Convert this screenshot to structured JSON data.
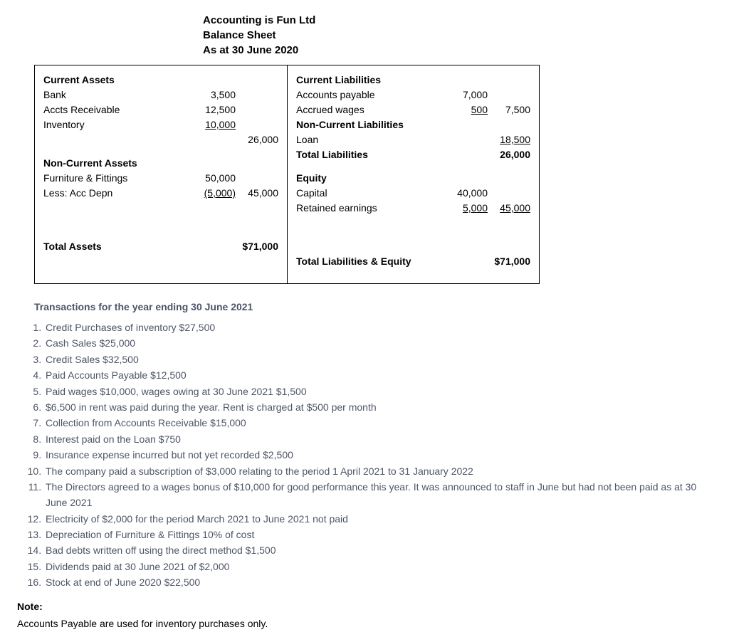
{
  "header": {
    "company": "Accounting is Fun Ltd",
    "report": "Balance Sheet",
    "asAt": "As at 30 June 2020"
  },
  "bs": {
    "left": {
      "caHead": "Current Assets",
      "bankLbl": "Bank",
      "bankVal": "3,500",
      "arLbl": "Accts Receivable",
      "arVal": "12,500",
      "invLbl": "Inventory",
      "invVal": "10,000",
      "caTotal": "26,000",
      "ncaHead": "Non-Current Assets",
      "ffLbl": "Furniture & Fittings",
      "ffVal": "50,000",
      "depLbl": "Less: Acc Depn",
      "depVal": "(5,000)",
      "ncaTotal": "45,000",
      "taLbl": "Total Assets",
      "taVal": "$71,000"
    },
    "right": {
      "clHead": "Current Liabilities",
      "apLbl": "Accounts payable",
      "apVal": "7,000",
      "awLbl": "Accrued wages",
      "awVal": "500",
      "clTotal": "7,500",
      "nclHead": "Non-Current Liabilities",
      "loanLbl": "Loan",
      "loanVal": "18,500",
      "tlLbl": "Total Liabilities",
      "tlVal": "26,000",
      "eqHead": "Equity",
      "capLbl": "Capital",
      "capVal": "40,000",
      "reLbl": "Retained earnings",
      "reVal": "5,000",
      "eqTotal": "45,000",
      "tleLbl": "Total Liabilities & Equity",
      "tleVal": "$71,000"
    }
  },
  "transHead": "Transactions for the year ending 30 June 2021",
  "trans": [
    "Credit Purchases of inventory $27,500",
    "Cash Sales $25,000",
    "Credit Sales $32,500",
    "Paid Accounts Payable $12,500",
    "Paid wages $10,000, wages owing at 30 June 2021 $1,500",
    "$6,500 in rent was paid during the year. Rent is charged at $500 per month",
    "Collection from Accounts Receivable $15,000",
    "Interest paid on the Loan $750",
    "Insurance expense incurred but not yet recorded $2,500",
    "The company paid a subscription of $3,000 relating to the period 1 April 2021 to 31 January 2022",
    "The Directors agreed to a wages bonus of $10,000 for good performance this year. It was announced to staff in June but had not been paid as at 30 June 2021",
    "Electricity of $2,000 for the period March 2021 to June 2021 not paid",
    "Depreciation of Furniture & Fittings 10% of cost",
    "Bad debts written off using the direct method $1,500",
    "Dividends paid at 30 June 2021 of $2,000",
    "Stock at end of June 2020 $22,500"
  ],
  "noteHead": "Note:",
  "noteBody": "Accounts Payable are used for inventory purchases only."
}
